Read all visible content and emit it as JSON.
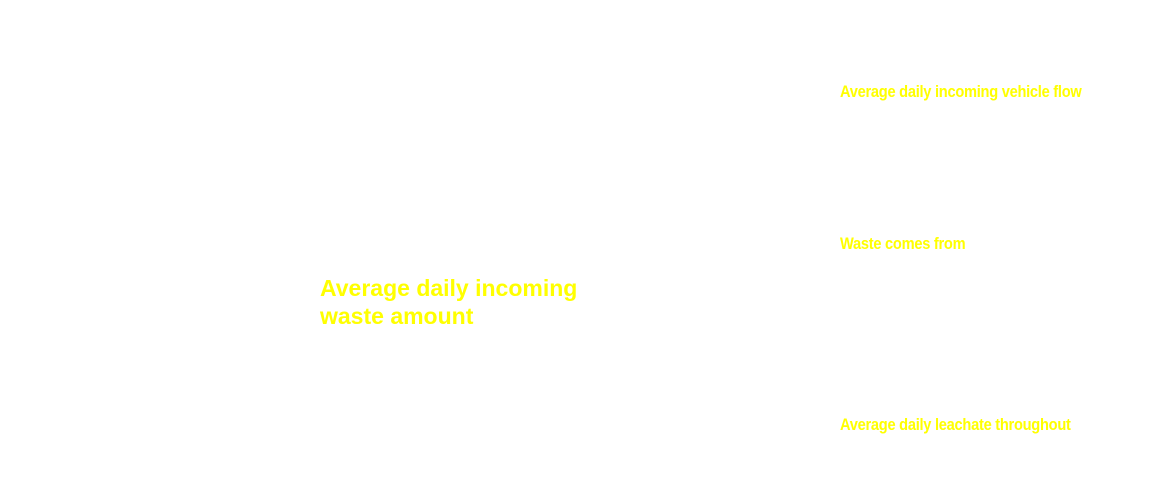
{
  "main": {
    "waste_amount_title_line1": "Average daily incoming",
    "waste_amount_title_line2": "waste amount"
  },
  "panels": {
    "vehicle_flow_title": "Average daily incoming vehicle flow",
    "waste_source_title": "Waste comes from",
    "leachate_title": "Average daily leachate throughout"
  },
  "colors": {
    "background": "#ffffff",
    "label_text": "#ffff00"
  }
}
